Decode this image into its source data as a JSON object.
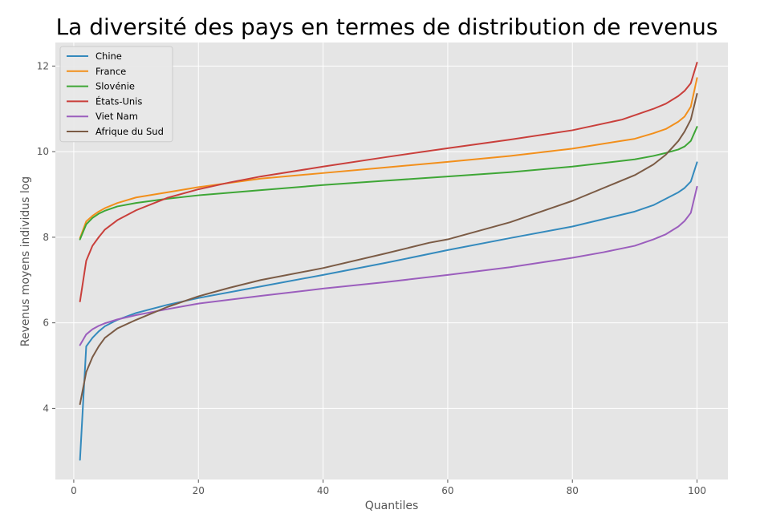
{
  "chart_data": {
    "type": "line",
    "title": "La diversité des pays en termes de distribution de revenus",
    "xlabel": "Quantiles",
    "ylabel": "Revenus moyens individus log",
    "xlim": [
      -2.95,
      104.95
    ],
    "ylim": [
      2.34,
      12.55
    ],
    "xticks": [
      0,
      20,
      40,
      60,
      80,
      100
    ],
    "yticks": [
      4,
      6,
      8,
      10,
      12
    ],
    "grid": true,
    "legend_position": "top-left",
    "colors": {
      "background": "#e5e5e5",
      "grid": "#ffffff",
      "text": "#555555"
    },
    "series": [
      {
        "name": "Chine",
        "color": "#348abd",
        "x": [
          1,
          2,
          3,
          4,
          5,
          7,
          10,
          15,
          20,
          30,
          40,
          50,
          60,
          70,
          80,
          90,
          93,
          95,
          97,
          98,
          99,
          100
        ],
        "values": [
          2.8,
          5.45,
          5.65,
          5.8,
          5.92,
          6.07,
          6.23,
          6.42,
          6.58,
          6.85,
          7.12,
          7.4,
          7.7,
          7.98,
          8.25,
          8.6,
          8.75,
          8.9,
          9.05,
          9.15,
          9.3,
          9.75
        ]
      },
      {
        "name": "France",
        "color": "#f28f1b",
        "x": [
          1,
          2,
          3,
          4,
          5,
          7,
          10,
          15,
          20,
          30,
          40,
          50,
          60,
          70,
          80,
          90,
          93,
          95,
          97,
          98,
          99,
          100
        ],
        "values": [
          7.98,
          8.37,
          8.5,
          8.6,
          8.68,
          8.8,
          8.93,
          9.05,
          9.17,
          9.37,
          9.5,
          9.63,
          9.76,
          9.9,
          10.07,
          10.3,
          10.43,
          10.53,
          10.7,
          10.82,
          11.05,
          11.72
        ]
      },
      {
        "name": "Slovénie",
        "color": "#3ea636",
        "x": [
          1,
          2,
          3,
          4,
          5,
          7,
          10,
          15,
          20,
          30,
          40,
          50,
          60,
          70,
          80,
          90,
          93,
          95,
          97,
          98,
          99,
          100
        ],
        "values": [
          7.95,
          8.3,
          8.45,
          8.55,
          8.62,
          8.72,
          8.8,
          8.9,
          8.98,
          9.1,
          9.22,
          9.32,
          9.42,
          9.52,
          9.65,
          9.82,
          9.9,
          9.97,
          10.05,
          10.12,
          10.25,
          10.58
        ]
      },
      {
        "name": "États-Unis",
        "color": "#c93f3b",
        "x": [
          1,
          2,
          3,
          4,
          5,
          7,
          10,
          15,
          20,
          25,
          30,
          40,
          50,
          60,
          70,
          80,
          88,
          93,
          95,
          97,
          98,
          99,
          100
        ],
        "values": [
          6.5,
          7.45,
          7.8,
          8.0,
          8.18,
          8.4,
          8.63,
          8.92,
          9.12,
          9.28,
          9.42,
          9.65,
          9.87,
          10.08,
          10.28,
          10.5,
          10.75,
          11.0,
          11.12,
          11.3,
          11.42,
          11.6,
          12.08
        ]
      },
      {
        "name": "Viet Nam",
        "color": "#9b5ebd",
        "x": [
          1,
          2,
          3,
          4,
          5,
          7,
          10,
          15,
          20,
          30,
          40,
          50,
          60,
          70,
          80,
          85,
          90,
          93,
          95,
          97,
          98,
          99,
          100
        ],
        "values": [
          5.48,
          5.73,
          5.85,
          5.93,
          5.99,
          6.08,
          6.18,
          6.32,
          6.45,
          6.63,
          6.8,
          6.95,
          7.12,
          7.3,
          7.52,
          7.65,
          7.8,
          7.95,
          8.07,
          8.25,
          8.38,
          8.57,
          9.18
        ]
      },
      {
        "name": "Afrique du Sud",
        "color": "#7b5b45",
        "x": [
          1,
          2,
          3,
          4,
          5,
          7,
          10,
          15,
          20,
          25,
          30,
          40,
          50,
          57,
          60,
          70,
          80,
          90,
          93,
          95,
          97,
          98,
          99,
          100
        ],
        "values": [
          4.1,
          4.85,
          5.2,
          5.45,
          5.65,
          5.87,
          6.07,
          6.37,
          6.62,
          6.82,
          7.0,
          7.28,
          7.62,
          7.87,
          7.95,
          8.35,
          8.85,
          9.45,
          9.7,
          9.93,
          10.25,
          10.47,
          10.75,
          11.35
        ]
      }
    ]
  }
}
